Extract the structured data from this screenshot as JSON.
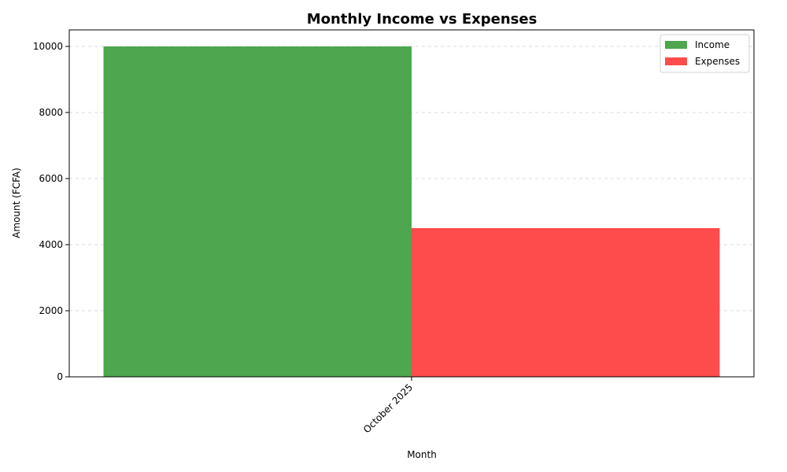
{
  "chart_data": {
    "type": "bar",
    "title": "Monthly Income vs Expenses",
    "xlabel": "Month",
    "ylabel": "Amount (FCFA)",
    "categories": [
      "October 2025"
    ],
    "series": [
      {
        "name": "Income",
        "values": [
          10000
        ],
        "color": "#4ea64e"
      },
      {
        "name": "Expenses",
        "values": [
          4500
        ],
        "color": "#fe4b4b"
      }
    ],
    "ylim": [
      0,
      10500
    ],
    "yticks": [
      0,
      2000,
      4000,
      6000,
      8000,
      10000
    ],
    "ytick_labels": [
      "0",
      "2000",
      "4000",
      "6000",
      "8000",
      "10000"
    ],
    "grid": "y-dashed",
    "legend": "top-right"
  }
}
